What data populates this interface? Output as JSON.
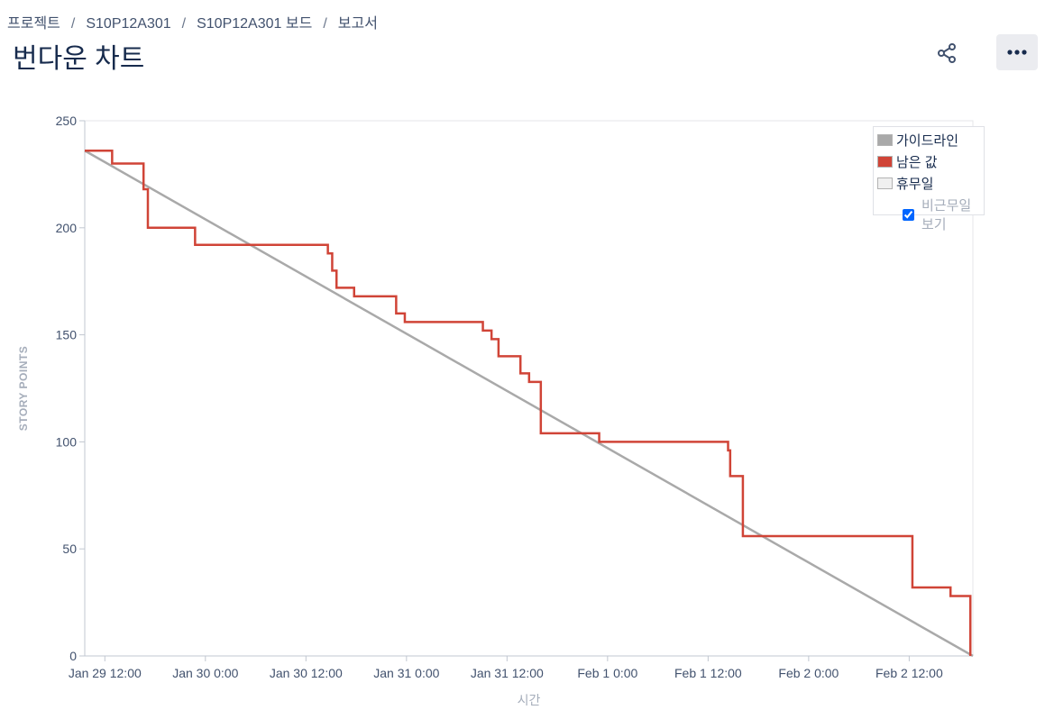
{
  "breadcrumb": [
    "프로젝트",
    "S10P12A301",
    "S10P12A301 보드",
    "보고서"
  ],
  "page_title": "번다운 차트",
  "icons": {
    "share": "share-icon",
    "more": "more-icon"
  },
  "colors": {
    "guideline": "#a9a9a9",
    "remaining": "#d04437",
    "holiday": "#f0f0f0",
    "axis": "#c1c7d0",
    "axis_title": "#a5adba"
  },
  "legend": {
    "guideline": "가이드라인",
    "remaining": "남은 값",
    "holiday": "휴무일",
    "toggle_label": "비근무일 보기",
    "toggle_checked": true
  },
  "chart_data": {
    "type": "line",
    "xlabel": "시간",
    "ylabel": "STORY POINTS",
    "ylim": [
      0,
      250
    ],
    "yticks": [
      0,
      50,
      100,
      150,
      200,
      250
    ],
    "xlim": [
      "2024-01-29 09:36",
      "2024-02-02 19:36"
    ],
    "xticks": [
      {
        "t": "2024-01-29 12:00",
        "label": "Jan 29 12:00"
      },
      {
        "t": "2024-01-30 00:00",
        "label": "Jan 30 0:00"
      },
      {
        "t": "2024-01-30 12:00",
        "label": "Jan 30 12:00"
      },
      {
        "t": "2024-01-31 00:00",
        "label": "Jan 31 0:00"
      },
      {
        "t": "2024-01-31 12:00",
        "label": "Jan 31 12:00"
      },
      {
        "t": "2024-02-01 00:00",
        "label": "Feb 1 0:00"
      },
      {
        "t": "2024-02-01 12:00",
        "label": "Feb 1 12:00"
      },
      {
        "t": "2024-02-02 00:00",
        "label": "Feb 2 0:00"
      },
      {
        "t": "2024-02-02 12:00",
        "label": "Feb 2 12:00"
      }
    ],
    "series": [
      {
        "name": "가이드라인",
        "points": [
          [
            "2024-01-29 09:36",
            236
          ],
          [
            "2024-02-02 19:36",
            0
          ]
        ]
      },
      {
        "name": "남은 값",
        "step": true,
        "points": [
          [
            "2024-01-29 09:36",
            236
          ],
          [
            "2024-01-29 12:52",
            230
          ],
          [
            "2024-01-29 16:37",
            218
          ],
          [
            "2024-01-29 17:08",
            200
          ],
          [
            "2024-01-29 22:46",
            192
          ],
          [
            "2024-01-30 14:37",
            188
          ],
          [
            "2024-01-30 15:08",
            180
          ],
          [
            "2024-01-30 15:39",
            172
          ],
          [
            "2024-01-30 17:45",
            168
          ],
          [
            "2024-01-30 22:46",
            160
          ],
          [
            "2024-01-30 23:48",
            156
          ],
          [
            "2024-01-31 09:07",
            152
          ],
          [
            "2024-01-31 10:09",
            148
          ],
          [
            "2024-01-31 10:59",
            140
          ],
          [
            "2024-01-31 13:36",
            132
          ],
          [
            "2024-01-31 14:38",
            128
          ],
          [
            "2024-01-31 16:02",
            104
          ],
          [
            "2024-01-31 23:00",
            100
          ],
          [
            "2024-02-01 14:23",
            96
          ],
          [
            "2024-02-01 14:38",
            84
          ],
          [
            "2024-02-01 16:09",
            56
          ],
          [
            "2024-02-01 16:09",
            56
          ],
          [
            "2024-02-02 12:23",
            32
          ],
          [
            "2024-02-02 16:56",
            28
          ],
          [
            "2024-02-02 19:18",
            0
          ]
        ]
      }
    ],
    "legend_position": "top-right",
    "grid": false
  }
}
